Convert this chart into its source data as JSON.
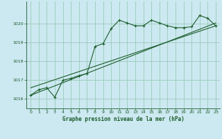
{
  "title": "Graphe pression niveau de la mer (hPa)",
  "bg_color": "#cce8f0",
  "grid_color": "#99ccbb",
  "line_color": "#1a5c2a",
  "xlim": [
    -0.5,
    23.5
  ],
  "ylim": [
    1015.5,
    1021.2
  ],
  "yticks": [
    1016,
    1017,
    1018,
    1019,
    1020
  ],
  "xticks": [
    0,
    1,
    2,
    3,
    4,
    5,
    6,
    7,
    8,
    9,
    10,
    11,
    12,
    13,
    14,
    15,
    16,
    17,
    18,
    19,
    20,
    21,
    22,
    23
  ],
  "series1_x": [
    0,
    1,
    2,
    3,
    4,
    5,
    6,
    7,
    8,
    9,
    10,
    11,
    12,
    13,
    14,
    15,
    16,
    17,
    18,
    19,
    20,
    21,
    22,
    23
  ],
  "series1_y": [
    1016.2,
    1016.5,
    1016.6,
    1016.1,
    1017.0,
    1017.1,
    1017.25,
    1017.35,
    1018.8,
    1018.95,
    1019.75,
    1020.2,
    1020.05,
    1019.9,
    1019.9,
    1020.2,
    1020.05,
    1019.9,
    1019.8,
    1019.8,
    1019.85,
    1020.45,
    1020.3,
    1019.9
  ],
  "series2_x": [
    0,
    23
  ],
  "series2_y": [
    1016.2,
    1020.05
  ],
  "series3_x": [
    0,
    23
  ],
  "series3_y": [
    1016.6,
    1019.9
  ]
}
